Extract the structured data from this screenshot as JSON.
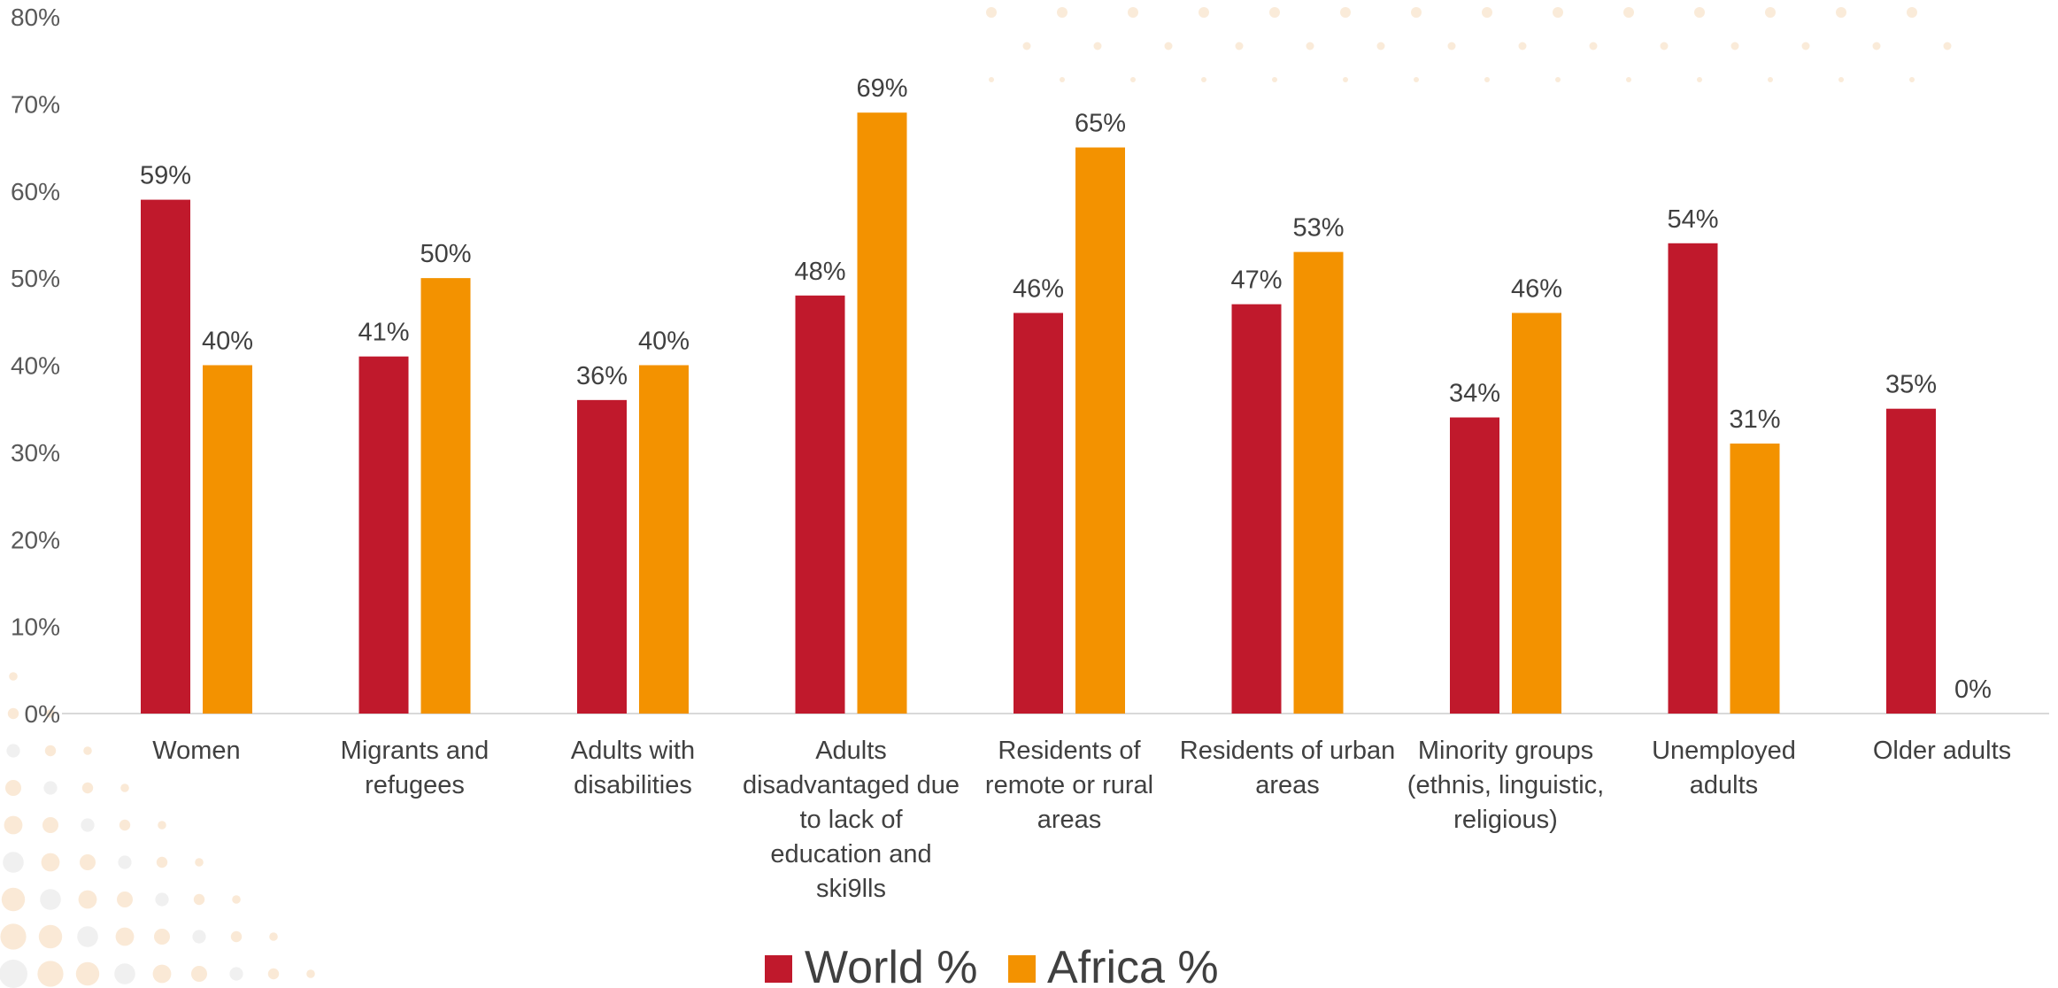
{
  "chart_data": {
    "type": "bar",
    "categories": [
      "Women",
      "Migrants and refugees",
      "Adults with disabilities",
      "Adults disadvantaged due to lack of education and ski9lls",
      "Residents of remote or rural areas",
      "Residents of urban areas",
      "Minority groups (ethnis, linguistic, religious)",
      "Unemployed adults",
      "Older adults"
    ],
    "category_lines": [
      [
        "Women"
      ],
      [
        "Migrants and",
        "refugees"
      ],
      [
        "Adults with",
        "disabilities"
      ],
      [
        "Adults",
        "disadvantaged due",
        "to lack of",
        "education and",
        "ski9lls"
      ],
      [
        "Residents of",
        "remote or rural",
        "areas"
      ],
      [
        "Residents of urban",
        "areas"
      ],
      [
        "Minority groups",
        "(ethnis, linguistic,",
        "religious)"
      ],
      [
        "Unemployed",
        "adults"
      ],
      [
        "Older adults"
      ]
    ],
    "series": [
      {
        "name": "World %",
        "color": "#c0192c",
        "values": [
          59,
          41,
          36,
          48,
          46,
          47,
          34,
          54,
          35
        ]
      },
      {
        "name": "Africa %",
        "color": "#f39200",
        "values": [
          40,
          50,
          40,
          69,
          65,
          53,
          46,
          31,
          0
        ]
      }
    ],
    "data_labels": [
      [
        "59%",
        "41%",
        "36%",
        "48%",
        "46%",
        "47%",
        "34%",
        "54%",
        "35%"
      ],
      [
        "40%",
        "50%",
        "40%",
        "69%",
        "65%",
        "53%",
        "46%",
        "31%",
        "0%"
      ]
    ],
    "y_ticks": [
      "0%",
      "10%",
      "20%",
      "30%",
      "40%",
      "50%",
      "60%",
      "70%",
      "80%"
    ],
    "ylim": [
      0,
      80
    ],
    "grid": false,
    "legend_position": "bottom"
  }
}
